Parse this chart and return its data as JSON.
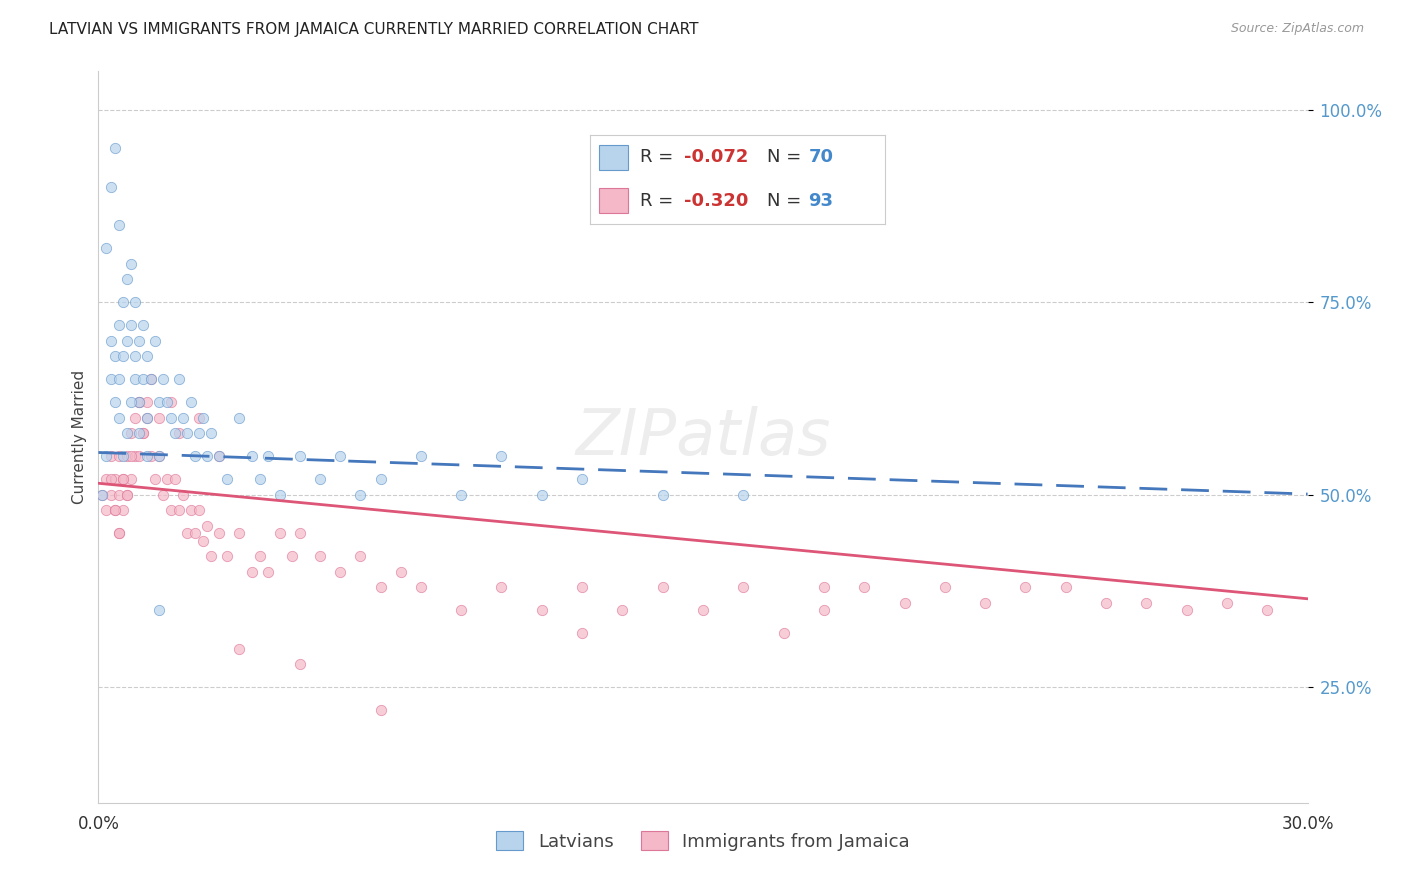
{
  "title": "LATVIAN VS IMMIGRANTS FROM JAMAICA CURRENTLY MARRIED CORRELATION CHART",
  "source": "Source: ZipAtlas.com",
  "ylabel": "Currently Married",
  "xlim": [
    0.0,
    0.3
  ],
  "ylim": [
    0.1,
    1.05
  ],
  "yticks": [
    0.25,
    0.5,
    0.75,
    1.0
  ],
  "ytick_labels": [
    "25.0%",
    "50.0%",
    "75.0%",
    "100.0%"
  ],
  "xticks": [
    0.0,
    0.05,
    0.1,
    0.15,
    0.2,
    0.25,
    0.3
  ],
  "xtick_labels": [
    "0.0%",
    "",
    "",
    "",
    "",
    "",
    "30.0%"
  ],
  "color_latvian_fill": "#b8d4ed",
  "color_latvian_edge": "#6699cc",
  "color_jamaica_fill": "#f4b8c8",
  "color_jamaica_edge": "#dd7799",
  "color_line_latvian": "#4477bb",
  "color_line_jamaica": "#dd5577",
  "alpha_scatter": 0.7,
  "marker_size": 55,
  "latvian_x": [
    0.001,
    0.002,
    0.002,
    0.003,
    0.003,
    0.004,
    0.004,
    0.005,
    0.005,
    0.005,
    0.006,
    0.006,
    0.007,
    0.007,
    0.008,
    0.008,
    0.009,
    0.009,
    0.01,
    0.01,
    0.011,
    0.011,
    0.012,
    0.012,
    0.013,
    0.014,
    0.015,
    0.015,
    0.016,
    0.017,
    0.018,
    0.019,
    0.02,
    0.021,
    0.022,
    0.023,
    0.024,
    0.025,
    0.026,
    0.027,
    0.028,
    0.03,
    0.032,
    0.035,
    0.038,
    0.04,
    0.042,
    0.045,
    0.05,
    0.055,
    0.06,
    0.065,
    0.07,
    0.08,
    0.09,
    0.1,
    0.11,
    0.12,
    0.14,
    0.16,
    0.003,
    0.004,
    0.005,
    0.006,
    0.007,
    0.008,
    0.009,
    0.01,
    0.012,
    0.015
  ],
  "latvian_y": [
    0.5,
    0.82,
    0.55,
    0.65,
    0.7,
    0.62,
    0.68,
    0.72,
    0.65,
    0.6,
    0.75,
    0.68,
    0.78,
    0.7,
    0.8,
    0.72,
    0.75,
    0.65,
    0.7,
    0.62,
    0.72,
    0.65,
    0.68,
    0.6,
    0.65,
    0.7,
    0.62,
    0.55,
    0.65,
    0.62,
    0.6,
    0.58,
    0.65,
    0.6,
    0.58,
    0.62,
    0.55,
    0.58,
    0.6,
    0.55,
    0.58,
    0.55,
    0.52,
    0.6,
    0.55,
    0.52,
    0.55,
    0.5,
    0.55,
    0.52,
    0.55,
    0.5,
    0.52,
    0.55,
    0.5,
    0.55,
    0.5,
    0.52,
    0.5,
    0.5,
    0.9,
    0.95,
    0.85,
    0.55,
    0.58,
    0.62,
    0.68,
    0.58,
    0.55,
    0.35
  ],
  "jamaica_x": [
    0.001,
    0.002,
    0.002,
    0.003,
    0.003,
    0.004,
    0.004,
    0.005,
    0.005,
    0.005,
    0.006,
    0.006,
    0.007,
    0.007,
    0.008,
    0.008,
    0.009,
    0.01,
    0.01,
    0.011,
    0.012,
    0.013,
    0.014,
    0.015,
    0.016,
    0.017,
    0.018,
    0.019,
    0.02,
    0.021,
    0.022,
    0.023,
    0.024,
    0.025,
    0.026,
    0.027,
    0.028,
    0.03,
    0.032,
    0.035,
    0.038,
    0.04,
    0.042,
    0.045,
    0.048,
    0.05,
    0.055,
    0.06,
    0.065,
    0.07,
    0.075,
    0.08,
    0.09,
    0.1,
    0.11,
    0.12,
    0.13,
    0.14,
    0.15,
    0.16,
    0.17,
    0.18,
    0.19,
    0.2,
    0.21,
    0.22,
    0.23,
    0.24,
    0.25,
    0.26,
    0.27,
    0.28,
    0.29,
    0.003,
    0.004,
    0.005,
    0.006,
    0.007,
    0.008,
    0.009,
    0.01,
    0.011,
    0.012,
    0.013,
    0.015,
    0.018,
    0.02,
    0.025,
    0.03,
    0.035,
    0.05,
    0.07,
    0.12,
    0.18
  ],
  "jamaica_y": [
    0.5,
    0.52,
    0.48,
    0.55,
    0.5,
    0.52,
    0.48,
    0.55,
    0.5,
    0.45,
    0.52,
    0.48,
    0.55,
    0.5,
    0.58,
    0.52,
    0.55,
    0.62,
    0.55,
    0.58,
    0.6,
    0.55,
    0.52,
    0.55,
    0.5,
    0.52,
    0.48,
    0.52,
    0.48,
    0.5,
    0.45,
    0.48,
    0.45,
    0.48,
    0.44,
    0.46,
    0.42,
    0.45,
    0.42,
    0.45,
    0.4,
    0.42,
    0.4,
    0.45,
    0.42,
    0.45,
    0.42,
    0.4,
    0.42,
    0.38,
    0.4,
    0.38,
    0.35,
    0.38,
    0.35,
    0.38,
    0.35,
    0.38,
    0.35,
    0.38,
    0.32,
    0.35,
    0.38,
    0.36,
    0.38,
    0.36,
    0.38,
    0.38,
    0.36,
    0.36,
    0.35,
    0.36,
    0.35,
    0.52,
    0.48,
    0.45,
    0.52,
    0.5,
    0.55,
    0.6,
    0.62,
    0.58,
    0.62,
    0.65,
    0.6,
    0.62,
    0.58,
    0.6,
    0.55,
    0.3,
    0.28,
    0.22,
    0.32,
    0.38
  ]
}
